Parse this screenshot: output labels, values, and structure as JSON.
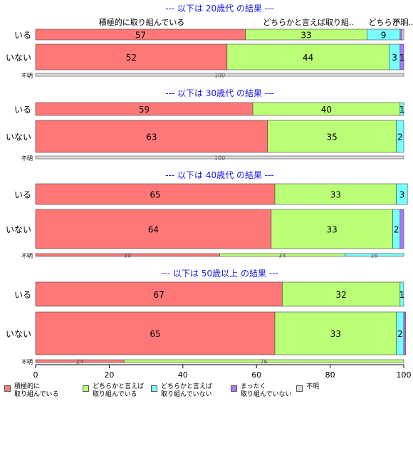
{
  "chart_data": {
    "type": "bar",
    "orientation": "horizontal-stacked-100",
    "xlim": [
      0,
      100
    ],
    "x_ticks": [
      "0",
      "20",
      "40",
      "60",
      "80",
      "100"
    ],
    "categories": [
      "積極的に取り組んでいる",
      "どちらかと言えば取り組んでいる",
      "どちらかと言えば取り組んでいない",
      "まったく取り組んでいない",
      "不明"
    ],
    "legend_labels": [
      "積極的に\n取り組んでいる",
      "どちらかと言えば\n取り組んでいる",
      "どちらかと言えば\n取り組んでいない",
      "まったく\n取り組んでいない",
      "不明"
    ],
    "colors": [
      "#ff7777",
      "#bbff77",
      "#77ffff",
      "#aa77ff",
      "#dddddd"
    ],
    "top_headers": [
      "積極的に取り組んでいる",
      "どちらかと言えば取り組..",
      "どちらか..",
      "不明.."
    ],
    "panels": [
      {
        "title": "--- 以下は 20歳代 の結果 ---",
        "rows": [
          {
            "label": "いる",
            "values": [
              57,
              33,
              9,
              0.5,
              0.5
            ],
            "labels": [
              "57",
              "33",
              "9",
              "",
              ""
            ]
          },
          {
            "label": "いない",
            "values": [
              52,
              44,
              3,
              1,
              0
            ],
            "labels": [
              "52",
              "44",
              "3",
              "1",
              ""
            ]
          },
          {
            "label": "不明",
            "values": [
              0,
              0,
              0,
              0,
              100
            ],
            "labels": [
              "",
              "",
              "",
              "",
              "100"
            ]
          }
        ]
      },
      {
        "title": "--- 以下は 30歳代 の結果 ---",
        "rows": [
          {
            "label": "いる",
            "values": [
              59,
              40,
              1,
              0,
              0
            ],
            "labels": [
              "59",
              "40",
              "1",
              "",
              ""
            ]
          },
          {
            "label": "いない",
            "values": [
              63,
              35,
              2,
              0,
              0
            ],
            "labels": [
              "63",
              "35",
              "2",
              "",
              ""
            ]
          },
          {
            "label": "不明",
            "values": [
              0,
              0,
              0,
              0,
              100
            ],
            "labels": [
              "",
              "",
              "",
              "",
              "100"
            ]
          }
        ]
      },
      {
        "title": "--- 以下は 40歳代 の結果 ---",
        "rows": [
          {
            "label": "いる",
            "values": [
              65,
              33,
              3,
              0,
              0
            ],
            "labels": [
              "65",
              "33",
              "3",
              "",
              ""
            ]
          },
          {
            "label": "いない",
            "values": [
              64,
              33,
              2,
              1,
              0
            ],
            "labels": [
              "64",
              "33",
              "2",
              "",
              ""
            ]
          },
          {
            "label": "不明",
            "values": [
              50,
              34,
              16,
              0,
              0
            ],
            "labels": [
              "50",
              "34",
              "16",
              "",
              ""
            ]
          }
        ]
      },
      {
        "title": "--- 以下は 50歳以上 の結果 ---",
        "rows": [
          {
            "label": "いる",
            "values": [
              67,
              32,
              1,
              0,
              0
            ],
            "labels": [
              "67",
              "32",
              "1",
              "",
              ""
            ]
          },
          {
            "label": "いない",
            "values": [
              65,
              33,
              2,
              0.5,
              0
            ],
            "labels": [
              "65",
              "33",
              "2",
              "",
              ""
            ]
          },
          {
            "label": "不明",
            "values": [
              24,
              76,
              0,
              0,
              0
            ],
            "labels": [
              "24",
              "76",
              "",
              "",
              ""
            ]
          }
        ]
      }
    ]
  }
}
